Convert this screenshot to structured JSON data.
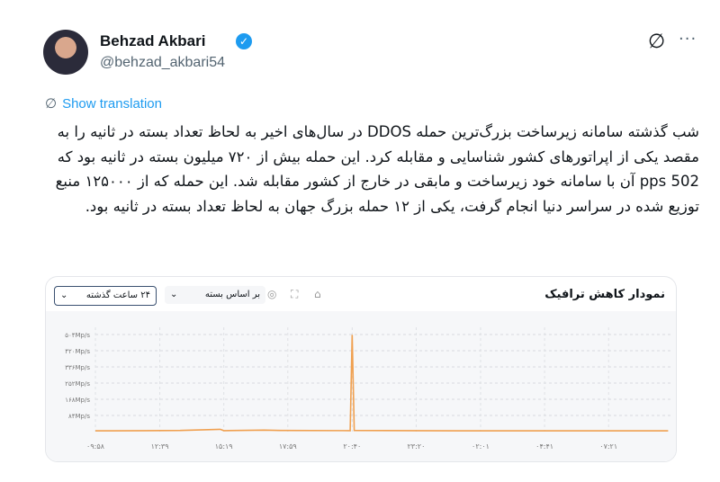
{
  "tweet": {
    "author_name": "Behzad Akbari",
    "handle": "@behzad_akbari54",
    "show_translation": "Show translation",
    "text": "شب گذشته سامانه زیرساخت بزرگ‌ترین حمله DDOS در سال‌های اخیر به لحاظ تعداد بسته در ثانیه را به مقصد یکی از اپراتورهای کشور شناسایی و مقابله کرد. این حمله بیش از ۷۲۰ میلیون بسته در ثانیه بود که 502 pps آن با سامانه خود زیرساخت و مابقی در خارج از کشور مقابله شد. این حمله که از ۱۲۵۰۰۰ منبع توزیع شده در سراسر دنیا انجام گرفت، یکی از ۱۲ حمله بزرگ جهان به لحاظ تعداد بسته در ثانیه بود.",
    "accent": "#1d9bf0"
  },
  "card": {
    "title": "نمودار کاهش ترافیک",
    "range_select": "۲۴ ساعت گذشته",
    "metric_select": "بر اساس بسته",
    "toolbar_icons": [
      "camera-icon",
      "expand-icon",
      "home-icon"
    ]
  },
  "chart_data": {
    "type": "line",
    "color": "#f0a050",
    "grid": true,
    "ylim": [
      0,
      504
    ],
    "yticks": [
      "۸۴Mp/s",
      "۱۶۸Mp/s",
      "۲۵۲Mp/s",
      "۳۳۶Mp/s",
      "۴۲۰Mp/s",
      "۵۰۴Mp/s"
    ],
    "xticks": [
      "۰۹:۵۸",
      "۱۲:۳۹",
      "۱۵:۱۹",
      "۱۷:۵۹",
      "۲۰:۴۰",
      "۲۳:۲۰",
      "۰۲:۰۱",
      "۰۴:۴۱",
      "۰۷:۲۱"
    ],
    "points": [
      [
        "09:58",
        4
      ],
      [
        "12:00",
        5
      ],
      [
        "13:30",
        6
      ],
      [
        "15:10",
        12
      ],
      [
        "15:19",
        5
      ],
      [
        "17:00",
        8
      ],
      [
        "17:40",
        6
      ],
      [
        "20:35",
        5
      ],
      [
        "20:40",
        502
      ],
      [
        "20:45",
        6
      ],
      [
        "23:20",
        5
      ],
      [
        "02:01",
        4
      ],
      [
        "04:41",
        4
      ],
      [
        "07:21",
        4
      ],
      [
        "09:50",
        4
      ]
    ]
  }
}
